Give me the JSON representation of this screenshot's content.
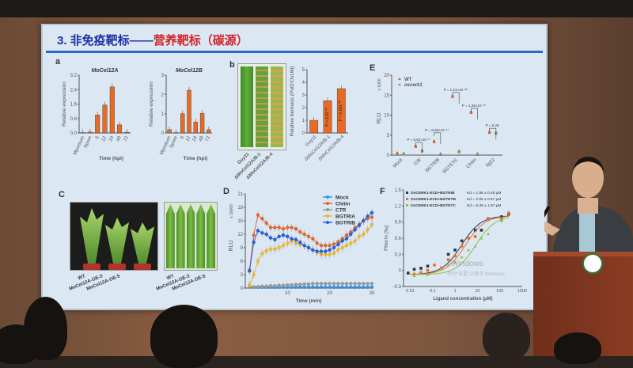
{
  "slide": {
    "title_blue": "3.  非免疫靶标——",
    "title_red": "营养靶标（碳源）",
    "panel_letters": [
      "a",
      "b",
      "C",
      "D",
      "E",
      "F"
    ],
    "c_labels": {
      "plants": [
        "WT",
        "MoCel12A-OE-3",
        "MoCel12A-OE-5"
      ],
      "leaves": [
        "WT",
        "MoCel12A-OE-3",
        "MoCel12A-OE-5"
      ]
    },
    "b_image_labels": [
      "Guy11",
      "ΔMoCel12A/B-1",
      "ΔMoCel12A/B-4"
    ],
    "watermark": [
      "Windows",
      "转到“设置”以激活 Windows。"
    ]
  },
  "colors": {
    "bar": "#e86a24",
    "title_blue": "#1d2fa6",
    "title_red": "#d3242c",
    "slide_bg": "#dbe8f3"
  },
  "chart_data": [
    {
      "id": "a1",
      "type": "bar",
      "title": "MoCel12A",
      "ylabel": "Relative expression",
      "xlabel": "Time (hpi)",
      "categories": [
        "Mycelium",
        "Spore",
        "6",
        "12",
        "24",
        "48",
        "72"
      ],
      "values": [
        0.02,
        0.05,
        1.0,
        1.55,
        2.55,
        0.45,
        0.04
      ],
      "ylim": [
        0,
        3.2
      ],
      "yticks": [
        "0.0",
        "0.8",
        "1.6",
        "2.4",
        "3.2"
      ]
    },
    {
      "id": "a2",
      "type": "bar",
      "title": "MoCel12B",
      "ylabel": "Relative expression",
      "xlabel": "Time (hpi)",
      "categories": [
        "Mycelium",
        "Spore",
        "6",
        "12",
        "24",
        "48",
        "72"
      ],
      "values": [
        0.17,
        0.02,
        1.0,
        2.22,
        0.57,
        1.02,
        0.17
      ],
      "ylim": [
        0,
        3
      ],
      "yticks": [
        "0",
        "1",
        "2",
        "3"
      ]
    },
    {
      "id": "b",
      "type": "bar",
      "ylabel": "Relative biomass (Pot2/OsUbi)",
      "xlabel": "",
      "categories": [
        "Guy11",
        "ΔMoCel12A/B-1",
        "ΔMoCel12A/B-4"
      ],
      "values": [
        1.0,
        2.55,
        3.5
      ],
      "annotations": [
        "",
        "P = 0.02 **",
        "P = 0.001 **"
      ],
      "ylim": [
        0,
        5
      ],
      "yticks": [
        "0",
        "1",
        "2",
        "3",
        "4",
        "5"
      ]
    },
    {
      "id": "E",
      "type": "scatter",
      "ylabel": "RLU",
      "yunit": "x 1000",
      "ylim": [
        0,
        20
      ],
      "yticks": [
        "0",
        "5",
        "10",
        "15",
        "20"
      ],
      "categories": [
        "Mock",
        "CW",
        "BGTRIB",
        "BGTETC",
        "Chitin",
        "flg22"
      ],
      "series": [
        {
          "name": "WT",
          "values": [
            0.2,
            2.0,
            3.2,
            14.5,
            10.5,
            5.5
          ],
          "color": "#c9683a"
        },
        {
          "name": "oscerk1",
          "values": [
            0.1,
            0.9,
            0.0,
            0.7,
            0.0,
            5.3
          ],
          "color": "#8a8a60"
        }
      ],
      "pvalues": [
        "",
        "P = 6.91×10⁻⁸",
        "P = 9.26×10⁻¹⁷",
        "P = 1.21×10⁻²²",
        "P = 1.25×10⁻¹²",
        "P = 0.29"
      ]
    },
    {
      "id": "D",
      "type": "line",
      "ylabel": "RLU",
      "yunit": "x 10000",
      "xlabel": "Time (min)",
      "xlim": [
        0,
        30
      ],
      "ylim": [
        0,
        21
      ],
      "xticks": [
        "10",
        "20",
        "30"
      ],
      "yticks": [
        "0",
        "3",
        "6",
        "9",
        "12",
        "15",
        "18",
        "21"
      ],
      "x": [
        1,
        2,
        3,
        4,
        5,
        6,
        7,
        8,
        9,
        10,
        11,
        12,
        13,
        14,
        15,
        16,
        17,
        18,
        19,
        20,
        21,
        22,
        23,
        24,
        25,
        26,
        27,
        28,
        29,
        30
      ],
      "series": [
        {
          "name": "Mock",
          "color": "#3a8fe0",
          "values": [
            0.2,
            0.2,
            0.2,
            0.2,
            0.2,
            0.2,
            0.2,
            0.2,
            0.2,
            0.2,
            0.2,
            0.2,
            0.2,
            0.2,
            0.2,
            0.2,
            0.2,
            0.2,
            0.2,
            0.2,
            0.2,
            0.2,
            0.2,
            0.2,
            0.2,
            0.2,
            0.2,
            0.2,
            0.2,
            0.2
          ]
        },
        {
          "name": "Chitin",
          "color": "#e0672e",
          "values": [
            4,
            11.8,
            16.3,
            15.5,
            14.5,
            13.5,
            13.5,
            13.5,
            13.2,
            13.5,
            13.5,
            13.2,
            12.5,
            12,
            11.5,
            11,
            10,
            9.5,
            9.5,
            9.5,
            9.8,
            10.3,
            11,
            11.8,
            12.5,
            13.5,
            14.2,
            15,
            15.5,
            15.8
          ]
        },
        {
          "name": "CTR",
          "color": "#999999",
          "values": [
            0.3,
            0.3,
            0.3,
            0.4,
            0.4,
            0.5,
            0.5,
            0.6,
            0.6,
            0.7,
            0.7,
            0.8,
            0.8,
            0.9,
            0.9,
            1,
            1,
            1,
            1,
            1,
            1,
            1,
            1,
            1,
            1,
            1,
            1,
            1,
            1,
            1
          ]
        },
        {
          "name": "BGTRIA",
          "color": "#f0b430",
          "values": [
            0.7,
            3,
            6,
            7.7,
            8.3,
            8.7,
            8.7,
            9,
            9.5,
            10,
            10.5,
            10,
            9.7,
            9.5,
            9,
            8.5,
            8,
            7.5,
            7.5,
            7.5,
            7.8,
            8.5,
            9,
            9.5,
            10,
            10.5,
            11.5,
            12,
            13,
            14.2
          ]
        },
        {
          "name": "BGTRIB",
          "color": "#2b5fd6",
          "values": [
            3.8,
            10.2,
            12.8,
            12.3,
            12,
            11.2,
            10.8,
            11.5,
            11.8,
            11.5,
            11,
            10.8,
            10.2,
            9.5,
            9,
            8.5,
            8.2,
            8.2,
            8.2,
            8.5,
            9,
            9.7,
            10.5,
            11,
            12,
            13,
            14,
            15,
            16,
            16.8
          ]
        }
      ]
    },
    {
      "id": "F",
      "type": "scatter",
      "ylabel": "FNorm [‰]",
      "xlabel": "Ligand concentration (μM)",
      "xscale": "log",
      "xlim": [
        0.005,
        1000
      ],
      "ylim": [
        -0.3,
        1.5
      ],
      "xticks": [
        "0.01",
        "0.1",
        "1",
        "10",
        "100",
        "1000"
      ],
      "yticks": [
        "-0.3",
        "0",
        "0.3",
        "0.6",
        "0.9",
        "1.2",
        "1.5"
      ],
      "series": [
        {
          "name": "OsCERK1-ECD+BGTRIB",
          "kd": "Kd = 1.95 ± 0.45 μM",
          "kd_value": 1.95,
          "color": "#2a3550",
          "marker": "square",
          "x": [
            0.008,
            0.015,
            0.03,
            0.06,
            0.5,
            1,
            2,
            8,
            15,
            30,
            120,
            250
          ],
          "y": [
            -0.05,
            0.02,
            0.04,
            0.08,
            0.3,
            0.38,
            0.55,
            0.75,
            0.75,
            0.96,
            1.0,
            1.05
          ]
        },
        {
          "name": "OsCERK1-ECD+BGTETB",
          "kd": "Kd = 2.90 ± 0.57 μM",
          "kd_value": 2.9,
          "color": "#e8742c",
          "marker": "circle",
          "x": [
            0.015,
            0.03,
            0.06,
            0.12,
            0.25,
            0.5,
            1,
            2,
            4,
            8,
            30,
            120,
            250
          ],
          "y": [
            -0.07,
            -0.04,
            0,
            0.1,
            0.05,
            0.2,
            0.27,
            0.45,
            0.6,
            0.63,
            0.95,
            0.95,
            1.07
          ]
        },
        {
          "name": "OsCERK1-ECD+BGTETC",
          "kd": "Kd = 8.38 ± 1.87 μM",
          "kd_value": 8.38,
          "color": "#8cbf4a",
          "marker": "triangle",
          "x": [
            0.015,
            0.06,
            0.25,
            0.5,
            1,
            2,
            4,
            8,
            15,
            30,
            120
          ],
          "y": [
            -0.1,
            -0.08,
            0.02,
            0.1,
            0.15,
            0.25,
            0.38,
            0.45,
            0.6,
            0.68,
            0.92
          ]
        }
      ]
    }
  ]
}
